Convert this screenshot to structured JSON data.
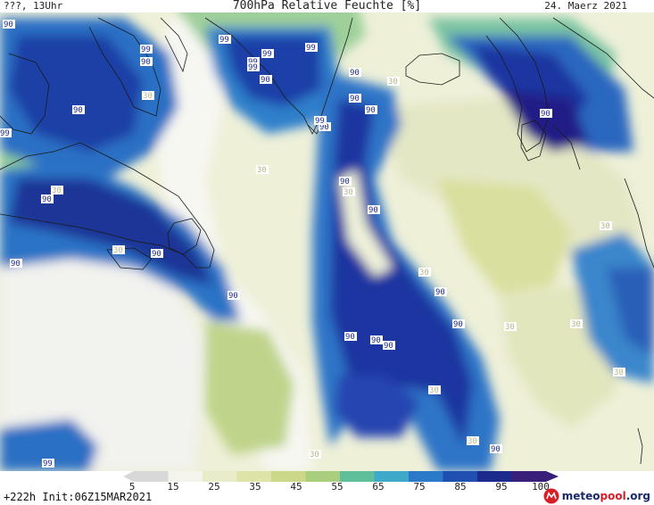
{
  "header": {
    "left": "???, 13Uhr",
    "center": "700hPa Relative Feuchte [%]",
    "right": "24. Maerz 2021"
  },
  "footer": {
    "run_info": "+222h Init:06Z15MAR2021",
    "brand": {
      "prefix": "meteo",
      "dot": "pool",
      "suffix": ".org"
    }
  },
  "legend": {
    "ticks": [
      "5",
      "15",
      "25",
      "35",
      "45",
      "55",
      "65",
      "75",
      "85",
      "95",
      "100"
    ],
    "colors": [
      "#d8d8d8",
      "#f4f4ea",
      "#e9ecc9",
      "#dde3a6",
      "#cbd88a",
      "#a9ce7e",
      "#5fbf9a",
      "#3fa9c9",
      "#2b7ac9",
      "#1f4fb0",
      "#1b2a8c",
      "#3a1f78"
    ]
  },
  "contour_labels": [
    "90",
    "99",
    "90",
    "99",
    "99",
    "99",
    "99",
    "90",
    "99",
    "90",
    "90",
    "99",
    "90",
    "90",
    "30",
    "99",
    "90",
    "30",
    "90",
    "30",
    "90",
    "90",
    "30",
    "90",
    "90",
    "30",
    "90",
    "30",
    "90",
    "90",
    "30",
    "90",
    "30",
    "90",
    "90",
    "90",
    "30",
    "30",
    "30",
    "30",
    "30",
    "90",
    "30",
    "99"
  ]
}
